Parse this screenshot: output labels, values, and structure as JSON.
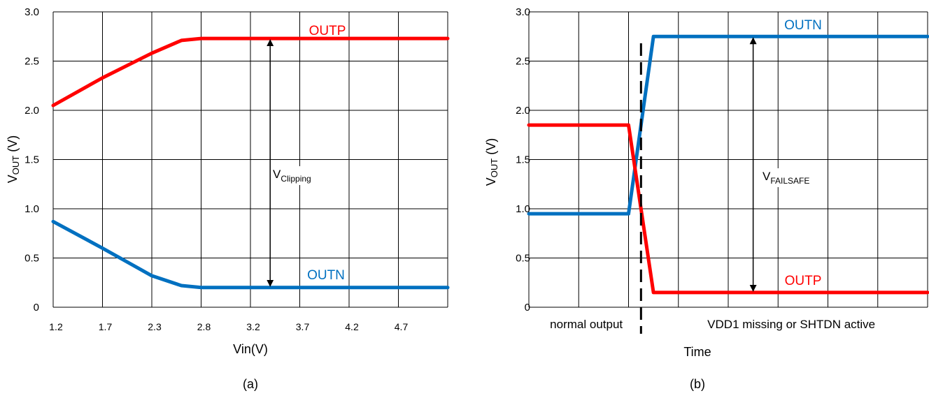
{
  "chart_data": [
    {
      "type": "line",
      "panel_label": "(a)",
      "xlabel": "Vin(V)",
      "ylabel": {
        "main": "V",
        "sub": "OUT",
        "unit": " (V)"
      },
      "x_tick_labels": [
        "1.2",
        "1.7",
        "2.3",
        "2.8",
        "3.2",
        "3.7",
        "4.2",
        "4.7"
      ],
      "y_tick_labels": [
        "0",
        "0.5",
        "1.0",
        "1.5",
        "2.0",
        "2.5",
        "3.0"
      ],
      "xlim": [
        0,
        8
      ],
      "ylim": [
        0,
        3.0
      ],
      "grid": true,
      "series": [
        {
          "name": "OUTP",
          "color": "#ff0000",
          "points": [
            [
              0,
              2.05
            ],
            [
              1,
              2.33
            ],
            [
              2,
              2.58
            ],
            [
              2.6,
              2.71
            ],
            [
              3,
              2.73
            ],
            [
              8,
              2.73
            ]
          ]
        },
        {
          "name": "OUTN",
          "color": "#0070c0",
          "points": [
            [
              0,
              0.87
            ],
            [
              1,
              0.6
            ],
            [
              2,
              0.32
            ],
            [
              2.6,
              0.22
            ],
            [
              3,
              0.2
            ],
            [
              8,
              0.2
            ]
          ]
        }
      ],
      "annotation": {
        "main": "V",
        "sub": "Clipping",
        "x": 4.4,
        "y_from": 0.2,
        "y_to": 2.73
      }
    },
    {
      "type": "line",
      "panel_label": "(b)",
      "xlabel": "Time",
      "ylabel": {
        "main": "V",
        "sub": "OUT",
        "unit": " (V)"
      },
      "y_tick_labels": [
        "0",
        "0.5",
        "1.0",
        "1.5",
        "2.0",
        "2.5",
        "3.0"
      ],
      "xlim": [
        0,
        8
      ],
      "ylim": [
        0,
        3.0
      ],
      "grid": true,
      "series": [
        {
          "name": "OUTN",
          "color": "#0070c0",
          "points": [
            [
              0,
              0.95
            ],
            [
              2,
              0.95
            ],
            [
              2.5,
              2.75
            ],
            [
              8,
              2.75
            ]
          ]
        },
        {
          "name": "OUTP",
          "color": "#ff0000",
          "points": [
            [
              0,
              1.85
            ],
            [
              2,
              1.85
            ],
            [
              2.5,
              0.15
            ],
            [
              8,
              0.15
            ]
          ]
        }
      ],
      "annotation": {
        "main": "V",
        "sub": "FAILSAFE",
        "x": 4.5,
        "y_from": 0.15,
        "y_to": 2.75
      },
      "regions": {
        "left": "normal output",
        "right": "VDD1 missing or SHTDN active"
      },
      "divider_x": 2.25
    }
  ]
}
